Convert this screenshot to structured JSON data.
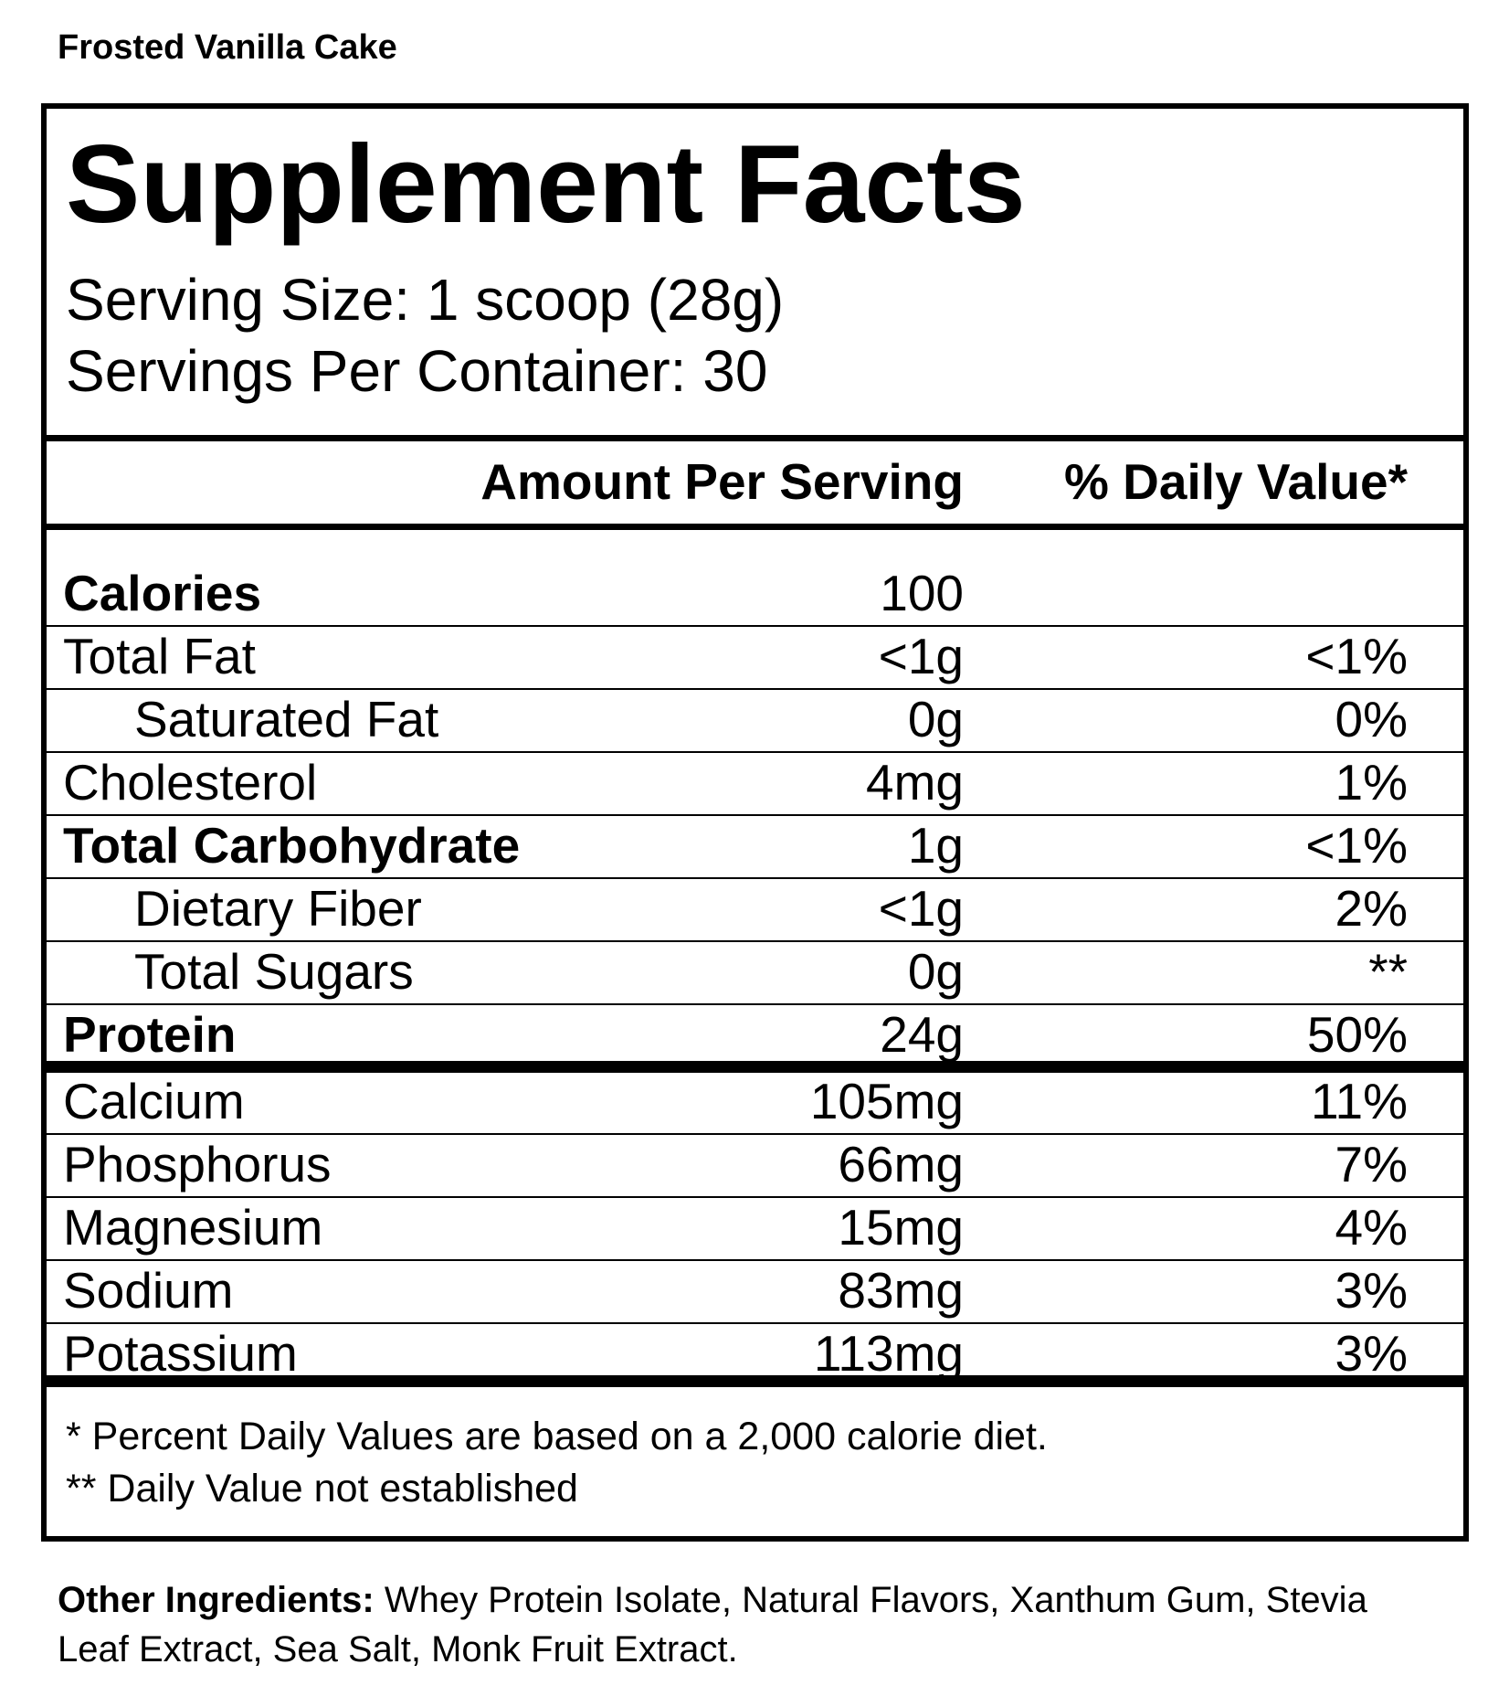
{
  "flavor": "Frosted Vanilla Cake",
  "panel": {
    "title": "Supplement Facts",
    "serving_size": "Serving Size: 1 scoop (28g)",
    "servings_per_container": "Servings Per Container: 30",
    "columns": {
      "amount": "Amount Per Serving",
      "daily_value": "% Daily Value*"
    },
    "rows": [
      {
        "label": "Calories",
        "amount": "100",
        "bold": true
      },
      {
        "label": "Total Fat",
        "amount": "<1g",
        "daily_value": "<1%"
      },
      {
        "label": "Saturated Fat",
        "amount": "0g",
        "daily_value": "0%",
        "indent": true
      },
      {
        "label": "Cholesterol",
        "amount": "4mg",
        "daily_value": "1%"
      },
      {
        "label": "Total Carbohydrate",
        "amount": "1g",
        "daily_value": "<1%",
        "bold": true
      },
      {
        "label": "Dietary Fiber",
        "amount": "<1g",
        "daily_value": "2%",
        "indent": true
      },
      {
        "label": "Total Sugars",
        "amount": "0g",
        "daily_value": "**",
        "indent": true
      },
      {
        "label": "Protein",
        "amount": "24g",
        "daily_value": "50%",
        "bold": true
      }
    ],
    "minerals": [
      {
        "label": "Calcium",
        "amount": "105mg",
        "daily_value": "11%"
      },
      {
        "label": "Phosphorus",
        "amount": "66mg",
        "daily_value": "7%"
      },
      {
        "label": "Magnesium",
        "amount": "15mg",
        "daily_value": "4%"
      },
      {
        "label": "Sodium",
        "amount": "83mg",
        "daily_value": "3%"
      },
      {
        "label": "Potassium",
        "amount": "113mg",
        "daily_value": "3%"
      }
    ],
    "footnotes": [
      "* Percent Daily Values are based on a 2,000 calorie diet.",
      "** Daily Value not established"
    ]
  },
  "other_ingredients": {
    "label": "Other Ingredients:",
    "text": " Whey Protein Isolate, Natural Flavors, Xanthum Gum, Stevia",
    "text_line2": "Leaf Extract, Sea Salt, Monk Fruit Extract."
  }
}
